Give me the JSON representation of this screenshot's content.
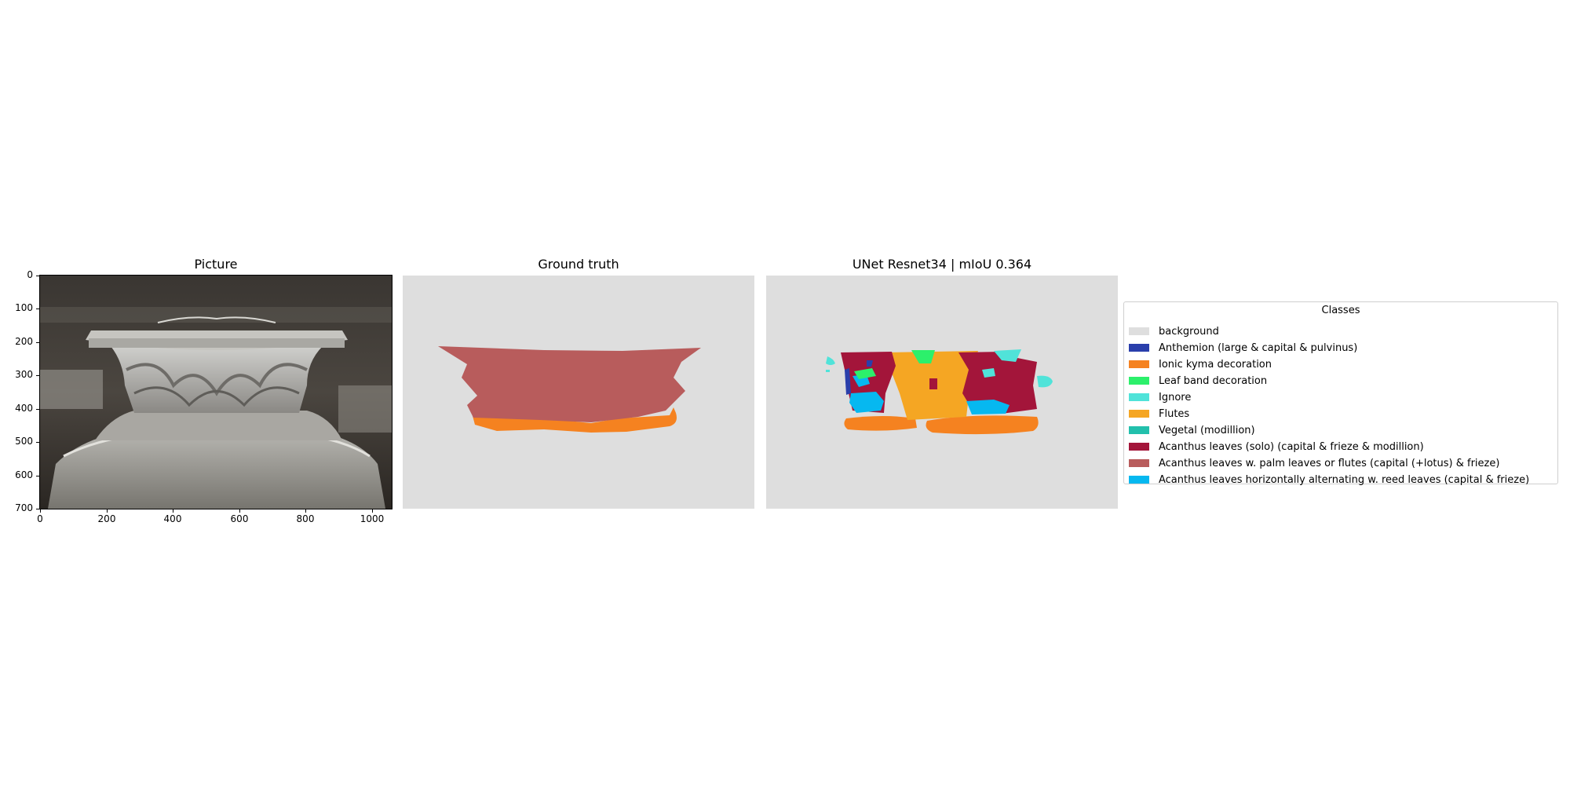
{
  "panels": {
    "picture_title": "Picture",
    "ground_truth_title": "Ground truth",
    "prediction_title": "UNet Resnet34 | mIoU 0.364"
  },
  "axes": {
    "x_ticks": [
      "0",
      "200",
      "400",
      "600",
      "800",
      "1000"
    ],
    "y_ticks": [
      "0",
      "100",
      "200",
      "300",
      "400",
      "500",
      "600",
      "700"
    ]
  },
  "legend": {
    "title": "Classes",
    "items": [
      {
        "label": "background",
        "color": "#dedede"
      },
      {
        "label": "Anthemion (large & capital & pulvinus)",
        "color": "#2a3fab"
      },
      {
        "label": "Ionic kyma decoration",
        "color": "#f58220"
      },
      {
        "label": "Leaf band decoration",
        "color": "#2cf06b"
      },
      {
        "label": "Ignore",
        "color": "#50e3d9"
      },
      {
        "label": "Flutes",
        "color": "#f5a623"
      },
      {
        "label": "Vegetal (modillion)",
        "color": "#22c0ac"
      },
      {
        "label": "Acanthus leaves (solo) (capital & frieze & modillion)",
        "color": "#a3153a"
      },
      {
        "label": "Acanthus leaves w. palm leaves or flutes (capital (+lotus) & frieze)",
        "color": "#b85c5c"
      },
      {
        "label": "Acanthus leaves horizontally alternating w. reed leaves (capital & frieze)",
        "color": "#06b8f0"
      }
    ]
  }
}
